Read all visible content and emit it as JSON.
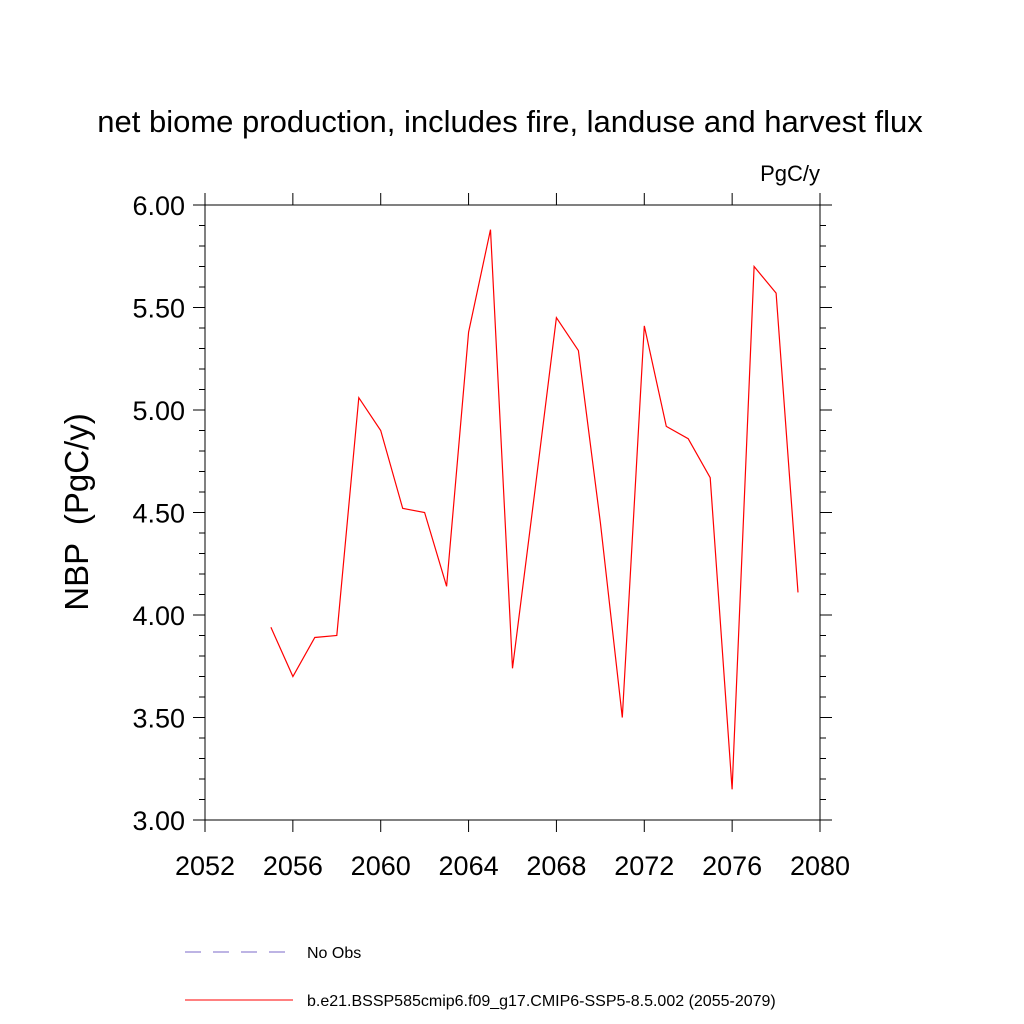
{
  "chart_data": {
    "type": "line",
    "title": "net biome production, includes fire, landuse and harvest flux",
    "units_label": "PgC/y",
    "ylabel": "NBP  (PgC/y)",
    "xlabel": "",
    "xlim": [
      2052,
      2080
    ],
    "ylim": [
      3.0,
      6.0
    ],
    "x_ticks": [
      2052,
      2056,
      2060,
      2064,
      2068,
      2072,
      2076,
      2080
    ],
    "y_ticks": [
      "3.00",
      "3.50",
      "4.00",
      "4.50",
      "5.00",
      "5.50",
      "6.00"
    ],
    "grid": false,
    "legend_position": "bottom",
    "series": [
      {
        "name": "b.e21.BSSP585cmip6.f09_g17.CMIP6-SSP5-8.5.002 (2055-2079)",
        "color": "#ff0000",
        "style": "solid",
        "x": [
          2055,
          2056,
          2057,
          2058,
          2059,
          2060,
          2061,
          2062,
          2063,
          2064,
          2065,
          2066,
          2067,
          2068,
          2069,
          2070,
          2071,
          2072,
          2073,
          2074,
          2075,
          2076,
          2077,
          2078,
          2079
        ],
        "y": [
          3.94,
          3.7,
          3.89,
          3.9,
          5.06,
          4.9,
          4.52,
          4.5,
          4.14,
          5.38,
          5.88,
          3.74,
          4.59,
          5.45,
          5.29,
          4.45,
          3.5,
          5.41,
          4.92,
          4.86,
          4.67,
          3.15,
          5.7,
          5.57,
          4.11
        ]
      }
    ],
    "legend": [
      {
        "label": "No Obs",
        "color": "#7b68c8",
        "style": "dashed"
      },
      {
        "label": "b.e21.BSSP585cmip6.f09_g17.CMIP6-SSP5-8.5.002 (2055-2079)",
        "color": "#ff0000",
        "style": "solid"
      }
    ]
  }
}
